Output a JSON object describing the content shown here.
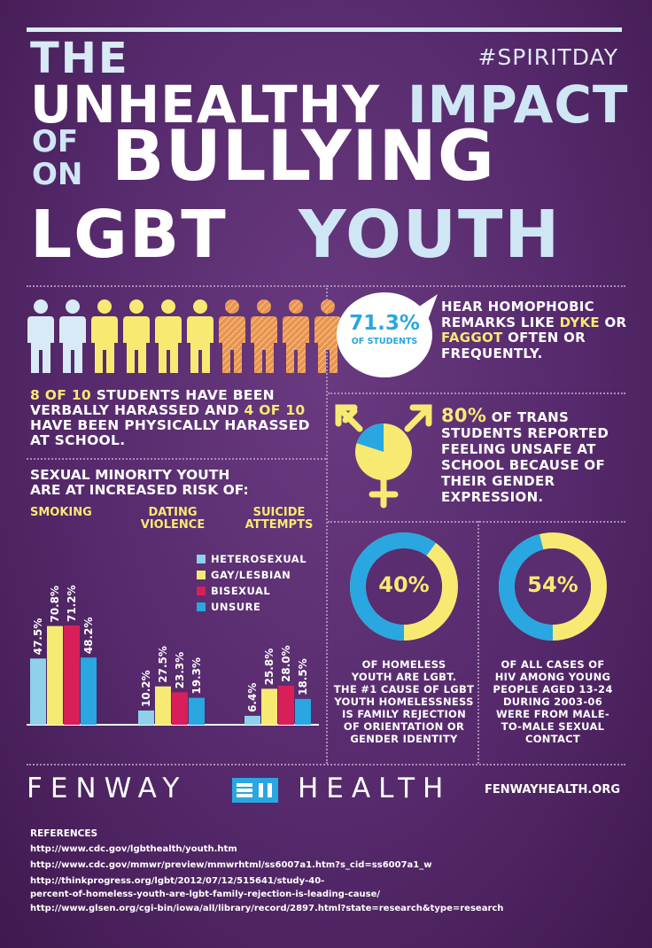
{
  "hashtag": "#SPIRITDAY",
  "title": {
    "the": "THE",
    "unhealthy": "UNHEALTHY",
    "impact": "IMPACT",
    "of": "OF",
    "on": "ON",
    "bullying": "BULLYING",
    "lgbt": "LGBT",
    "youth": "YOUTH"
  },
  "people": [
    {
      "type": "white"
    },
    {
      "type": "white"
    },
    {
      "type": "yellow"
    },
    {
      "type": "yellow"
    },
    {
      "type": "yellow"
    },
    {
      "type": "yellow"
    },
    {
      "type": "orange"
    },
    {
      "type": "orange"
    },
    {
      "type": "orange"
    },
    {
      "type": "orange"
    }
  ],
  "stat_harassed": {
    "n1": "8 OF 10",
    "t1": " STUDENTS HAVE BEEN VERBALLY HARASSED AND ",
    "n2": "4 OF 10",
    "t2": " HAVE BEEN PHYSICALLY HARASSED AT SCHOOL."
  },
  "risk_header_line1": "SEXUAL MINORITY YOUTH",
  "risk_header_line2": "ARE AT INCREASED RISK OF:",
  "chart_data": {
    "type": "bar",
    "categories": [
      "SMOKING",
      "DATING VIOLENCE",
      "SUICIDE ATTEMPTS"
    ],
    "category_lines": [
      [
        "SMOKING"
      ],
      [
        "DATING",
        "VIOLENCE"
      ],
      [
        "SUICIDE",
        "ATTEMPTS"
      ]
    ],
    "series": [
      {
        "name": "HETEROSEXUAL",
        "color": "#8fd0ea",
        "values": [
          47.5,
          10.2,
          6.4
        ],
        "labels": [
          "47.5%",
          "10.2%",
          "6.4%"
        ]
      },
      {
        "name": "GAY/LESBIAN",
        "color": "#f6ea72",
        "values": [
          70.8,
          27.5,
          25.8
        ],
        "labels": [
          "70.8%",
          "27.5%",
          "25.8%"
        ]
      },
      {
        "name": "BISEXUAL",
        "color": "#d81f5a",
        "values": [
          71.2,
          23.3,
          28.0
        ],
        "labels": [
          "71.2%",
          "23.3%",
          "28.0%"
        ]
      },
      {
        "name": "UNSURE",
        "color": "#2aa6e0",
        "values": [
          48.2,
          19.3,
          18.5
        ],
        "labels": [
          "48.2%",
          "19.3%",
          "18.5%"
        ]
      }
    ],
    "ylim": [
      0,
      100
    ]
  },
  "remarks": {
    "value": "71.3%",
    "label": "OF STUDENTS",
    "t1": "HEAR HOMOPHOBIC REMARKS LIKE ",
    "w1": "DYKE",
    "t2": " OR ",
    "w2": "FAGGOT",
    "t3": " OFTEN OR FREQUENTLY."
  },
  "trans": {
    "value": "80%",
    "text": " OF TRANS STUDENTS REPORTED FEELING UNSAFE AT SCHOOL BECAUSE OF THEIR GENDER EXPRESSION.",
    "fraction": 0.8
  },
  "homeless": {
    "value": "40%",
    "fraction": 0.4,
    "caption": [
      "OF HOMELESS",
      "YOUTH ARE LGBT.",
      "THE #1 CAUSE OF LGBT",
      "YOUTH HOMELESSNESS",
      "IS FAMILY REJECTION",
      "OF ORIENTATION OR",
      "GENDER IDENTITY"
    ]
  },
  "hiv": {
    "value": "54%",
    "fraction": 0.54,
    "caption": [
      "OF ALL CASES OF",
      "HIV AMONG YOUNG",
      "PEOPLE AGED 13-24",
      "DURING 2003-06",
      "WERE FROM MALE-",
      "TO-MALE SEXUAL",
      "CONTACT"
    ]
  },
  "colors": {
    "yellow": "#f6ea72",
    "blue": "#2aa6e0",
    "light_blue": "#8fd0ea",
    "pink": "#d81f5a",
    "orange": "#e9944d"
  },
  "footer": {
    "left": "FENWAY",
    "right": "HEALTH",
    "url": "FENWAYHEALTH.ORG"
  },
  "references": {
    "header": "REFERENCES",
    "items": [
      "http://www.cdc.gov/lgbthealth/youth.htm",
      "http://www.cdc.gov/mmwr/preview/mmwrhtml/ss6007a1.htm?s_cid=ss6007a1_w",
      "http://thinkprogress.org/lgbt/2012/07/12/515641/study-40-",
      "percent-of-homeless-youth-are-lgbt-family-rejection-is-leading-cause/",
      "http://www.glsen.org/cgi-bin/iowa/all/library/record/2897.html?state=research&type=research"
    ]
  }
}
